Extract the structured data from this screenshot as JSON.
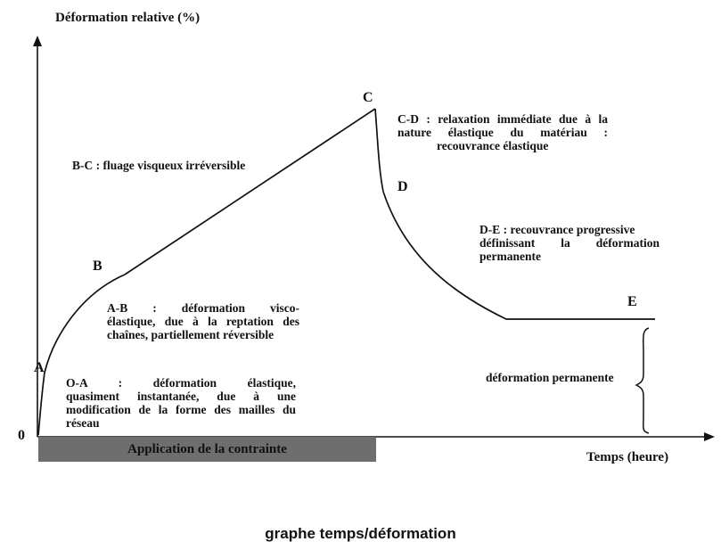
{
  "diagram": {
    "y_axis_title": "Déformation relative (%)",
    "x_axis_title": "Temps (heure)",
    "origin_label": "0",
    "stress_bar_label": "Application de la contrainte",
    "stress_bar_color": "#6e6e6e",
    "points": {
      "A": "A",
      "B": "B",
      "C": "C",
      "D": "D",
      "E": "E"
    },
    "annotations": {
      "bc": "B-C : fluage visqueux irréversible",
      "cd": [
        "C-D : relaxation immédiate due à la",
        "nature élastique du matériau :",
        "recouvrance élastique"
      ],
      "de": [
        "D-E : recouvrance progressive",
        "définissant la déformation",
        "permanente"
      ],
      "ab": [
        "A-B : déformation visco-",
        "élastique, due à la reptation des",
        "chaînes, partiellement réversible"
      ],
      "oa": [
        "O-A : déformation élastique,",
        "quasiment instantanée, due à une",
        "modification de la forme des mailles du",
        "réseau"
      ],
      "permanent": "déformation permanente"
    }
  },
  "caption": "graphe temps/déformation"
}
